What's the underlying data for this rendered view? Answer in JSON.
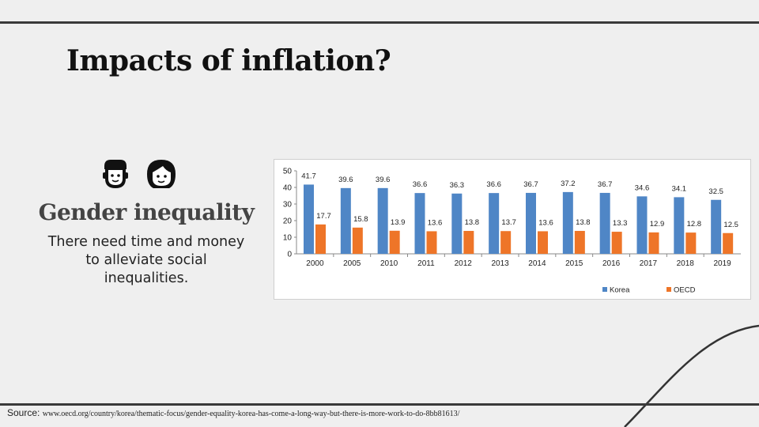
{
  "slide": {
    "title": "Impacts of inflation?",
    "subheading": "Gender inequality",
    "body": "There need time and money to alleviate social inequalities.",
    "source_label": "Source:",
    "source_url": "www.oecd.org/country/korea/thematic-focus/gender-equality-korea-has-come-a-long-way-but-there-is-more-work-to-do-8bb81613/",
    "icons": [
      "man-icon",
      "woman-icon"
    ]
  },
  "colors": {
    "korea": "#4f86c6",
    "oecd": "#ee7528",
    "text": "#111111"
  },
  "chart_data": {
    "type": "bar",
    "categories": [
      "2000",
      "2005",
      "2010",
      "2011",
      "2012",
      "2013",
      "2014",
      "2015",
      "2016",
      "2017",
      "2018",
      "2019"
    ],
    "series": [
      {
        "name": "Korea",
        "values": [
          41.7,
          39.6,
          39.6,
          36.6,
          36.3,
          36.6,
          36.7,
          37.2,
          36.7,
          34.6,
          34.1,
          32.5
        ]
      },
      {
        "name": "OECD",
        "values": [
          17.7,
          15.8,
          13.9,
          13.6,
          13.8,
          13.7,
          13.6,
          13.8,
          13.3,
          12.9,
          12.8,
          12.5
        ]
      }
    ],
    "value_labels": {
      "Korea": [
        "41.7",
        "39.6",
        "39.6",
        "36.6",
        "36.3",
        "36.6",
        "36.7",
        "37.2",
        "36.7",
        "34.6",
        "34.1",
        "32.5"
      ],
      "OECD": [
        "17.7",
        "15.8",
        "13.9",
        "13.6",
        "13.8",
        "13.7",
        "13.6",
        "13.8",
        "13.3",
        "12.9",
        "12.8",
        "12.5"
      ]
    },
    "ylim": [
      0,
      50
    ],
    "yticks": [
      "0",
      "10",
      "20",
      "30",
      "40",
      "50"
    ],
    "legend": [
      "Korea",
      "OECD"
    ],
    "legend_position": "bottom-right",
    "title": "",
    "xlabel": "",
    "ylabel": ""
  }
}
